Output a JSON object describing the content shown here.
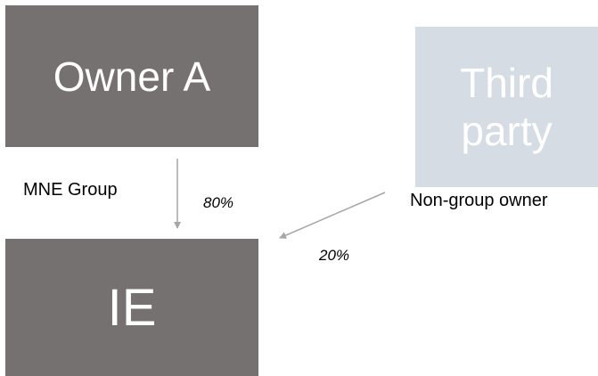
{
  "nodes": {
    "owner_a": "Owner A",
    "third_party": "Third\nparty",
    "ie": "IE"
  },
  "labels": {
    "mne_group": "MNE Group",
    "non_group_owner": "Non-group owner"
  },
  "edges": {
    "owner_a_to_ie": "80%",
    "third_party_to_ie": "20%"
  },
  "colors": {
    "dark_box": "#767171",
    "light_box": "#d5dce4",
    "arrow": "#a6a6a6",
    "box_text": "#ffffff"
  }
}
